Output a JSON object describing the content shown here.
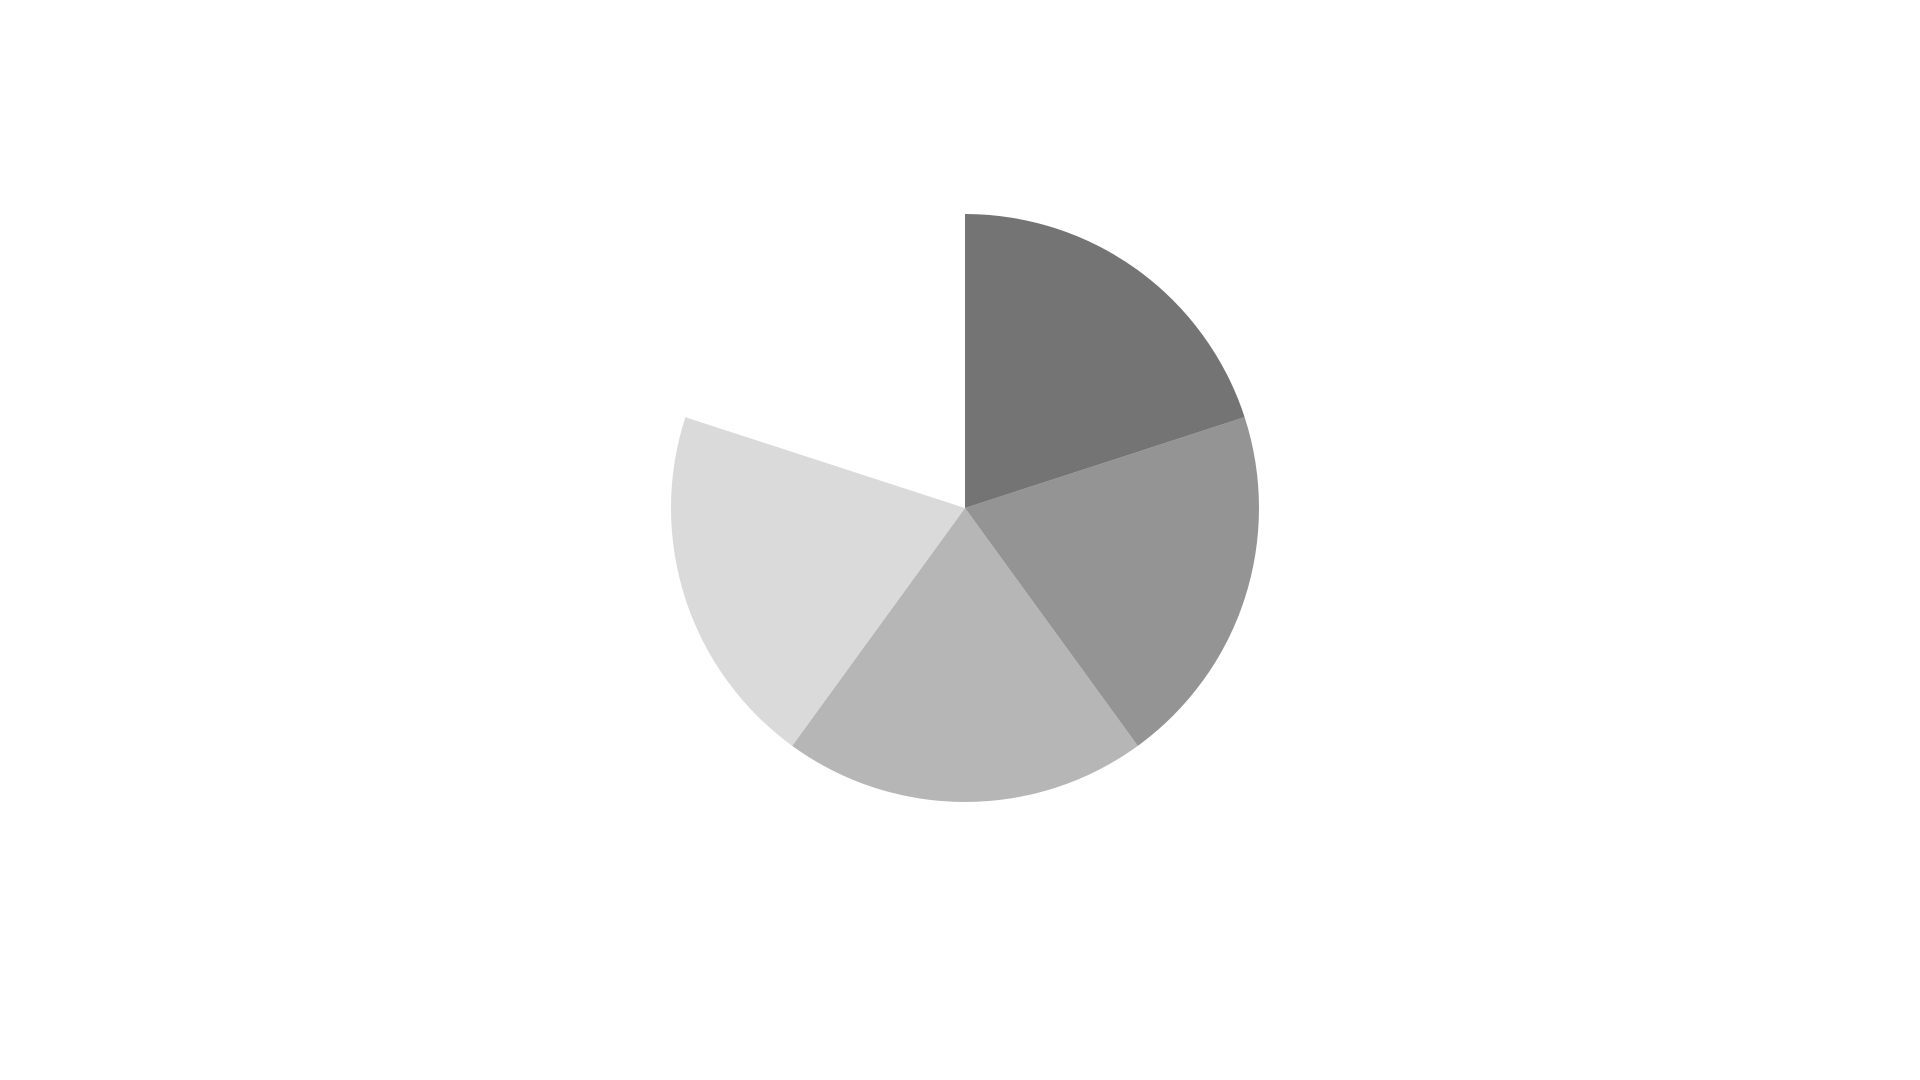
{
  "chart_data": {
    "type": "pie",
    "start_angle_deg": 0,
    "direction": "clockwise",
    "total_slices": 5,
    "slices": [
      {
        "value": 1,
        "color": "#747474"
      },
      {
        "value": 1,
        "color": "#949494"
      },
      {
        "value": 1,
        "color": "#b6b6b6"
      },
      {
        "value": 1,
        "color": "#dadada"
      },
      {
        "value": 1,
        "color": "#ffffff"
      }
    ],
    "legend": "none",
    "data_labels": "none"
  }
}
